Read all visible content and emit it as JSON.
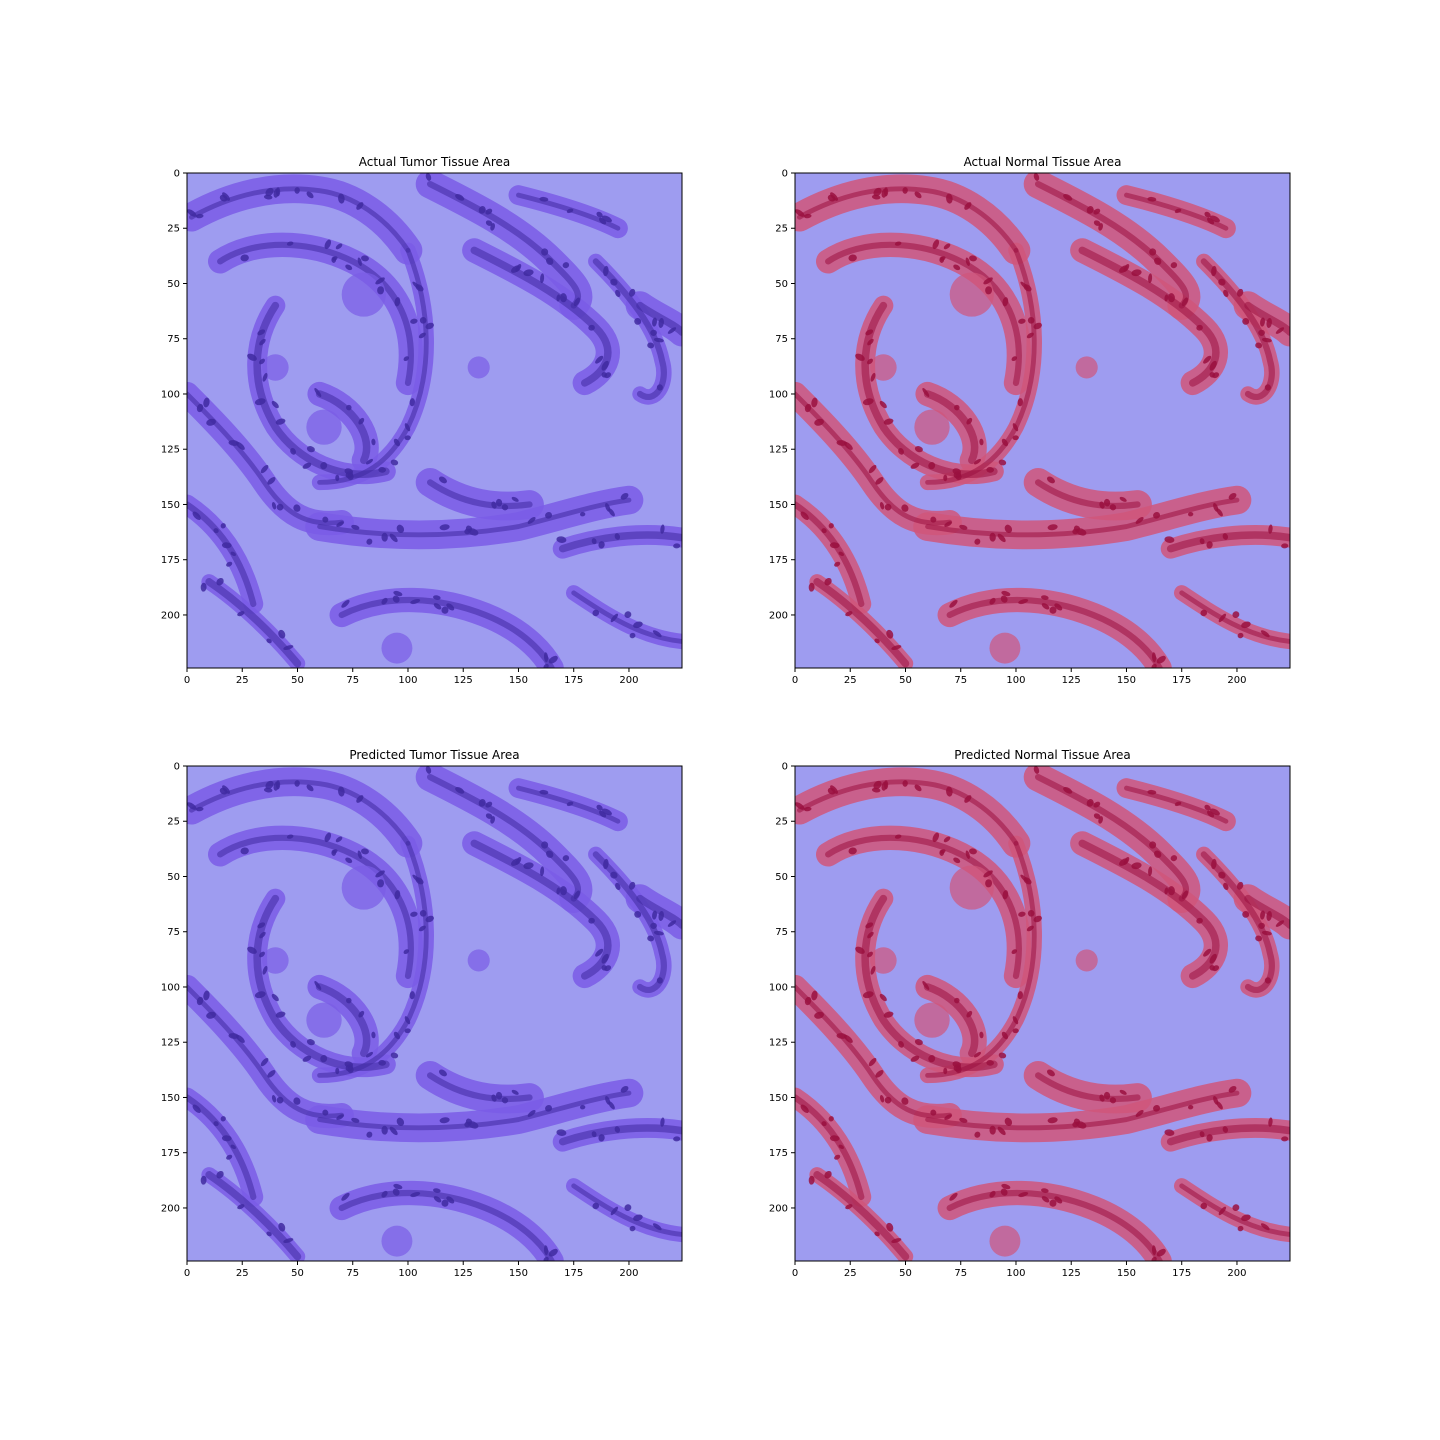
{
  "chart_data": [
    {
      "type": "image",
      "title": "Actual Tumor Tissue Area",
      "overlay": "tumor",
      "xlim": [
        0,
        224
      ],
      "ylim": [
        224,
        0
      ],
      "xticks": [
        0,
        25,
        50,
        75,
        100,
        125,
        150,
        175,
        200
      ],
      "yticks": [
        0,
        25,
        50,
        75,
        100,
        125,
        150,
        175,
        200
      ],
      "colors": {
        "background": "#9e9cf0",
        "stain": "#7a5ce6",
        "dark": "#3f2aa0"
      }
    },
    {
      "type": "image",
      "title": "Actual Normal Tissue Area",
      "overlay": "normal",
      "xlim": [
        0,
        224
      ],
      "ylim": [
        224,
        0
      ],
      "xticks": [
        0,
        25,
        50,
        75,
        100,
        125,
        150,
        175,
        200
      ],
      "yticks": [
        0,
        25,
        50,
        75,
        100,
        125,
        150,
        175,
        200
      ],
      "colors": {
        "background": "#9e9cf0",
        "stain": "#d0567a",
        "dark": "#9a1040"
      }
    },
    {
      "type": "image",
      "title": "Predicted Tumor Tissue Area",
      "overlay": "tumor",
      "xlim": [
        0,
        224
      ],
      "ylim": [
        224,
        0
      ],
      "xticks": [
        0,
        25,
        50,
        75,
        100,
        125,
        150,
        175,
        200
      ],
      "yticks": [
        0,
        25,
        50,
        75,
        100,
        125,
        150,
        175,
        200
      ],
      "colors": {
        "background": "#9e9cf0",
        "stain": "#7a5ce6",
        "dark": "#3f2aa0"
      }
    },
    {
      "type": "image",
      "title": "Predicted Normal Tissue Area",
      "overlay": "normal",
      "xlim": [
        0,
        224
      ],
      "ylim": [
        224,
        0
      ],
      "xticks": [
        0,
        25,
        50,
        75,
        100,
        125,
        150,
        175,
        200
      ],
      "yticks": [
        0,
        25,
        50,
        75,
        100,
        125,
        150,
        175,
        200
      ],
      "colors": {
        "background": "#9e9cf0",
        "stain": "#d0567a",
        "dark": "#9a1040"
      }
    }
  ]
}
